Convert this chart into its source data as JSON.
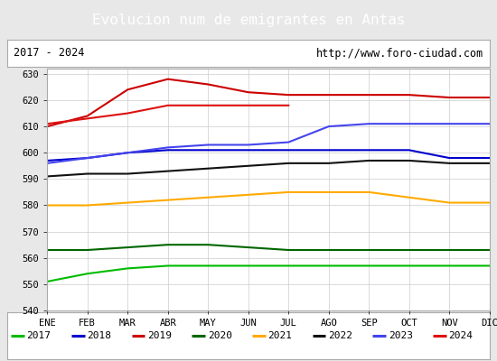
{
  "title": "Evolucion num de emigrantes en Antas",
  "title_bg": "#4a8fd4",
  "title_color": "white",
  "subtitle_left": "2017 - 2024",
  "subtitle_right": "http://www.foro-ciudad.com",
  "months": [
    "ENE",
    "FEB",
    "MAR",
    "ABR",
    "MAY",
    "JUN",
    "JUL",
    "AGO",
    "SEP",
    "OCT",
    "NOV",
    "DIC"
  ],
  "ylim": [
    540,
    632
  ],
  "yticks": [
    540,
    550,
    560,
    570,
    580,
    590,
    600,
    610,
    620,
    630
  ],
  "series": {
    "2017": {
      "color": "#00bb00",
      "data": [
        551,
        554,
        556,
        557,
        557,
        557,
        557,
        557,
        557,
        557,
        557,
        557
      ]
    },
    "2018": {
      "color": "#0000cc",
      "data": [
        597,
        598,
        600,
        601,
        601,
        601,
        601,
        601,
        601,
        601,
        598,
        598
      ]
    },
    "2019": {
      "color": "#cc0000",
      "data": [
        610,
        614,
        624,
        628,
        626,
        623,
        622,
        622,
        622,
        622,
        621,
        621
      ]
    },
    "2020": {
      "color": "#006600",
      "data": [
        563,
        563,
        564,
        565,
        565,
        564,
        563,
        563,
        563,
        563,
        563,
        563
      ]
    },
    "2021": {
      "color": "#ffaa00",
      "data": [
        580,
        580,
        581,
        582,
        583,
        584,
        585,
        585,
        585,
        583,
        581,
        581
      ]
    },
    "2022": {
      "color": "#111111",
      "data": [
        591,
        592,
        592,
        593,
        594,
        595,
        596,
        596,
        597,
        597,
        596,
        596
      ]
    },
    "2023": {
      "color": "#4444ee",
      "data": [
        596,
        598,
        600,
        602,
        603,
        603,
        604,
        610,
        611,
        611,
        611,
        611
      ]
    },
    "2024": {
      "color": "#dd1111",
      "data": [
        611,
        613,
        615,
        618,
        618,
        618,
        618,
        null,
        null,
        null,
        null,
        null
      ]
    }
  },
  "legend_order": [
    "2017",
    "2018",
    "2019",
    "2020",
    "2021",
    "2022",
    "2023",
    "2024"
  ],
  "outer_bg": "#e8e8e8",
  "plot_bg": "#ffffff",
  "grid_color": "#cccccc",
  "border_color": "#aaaaaa"
}
